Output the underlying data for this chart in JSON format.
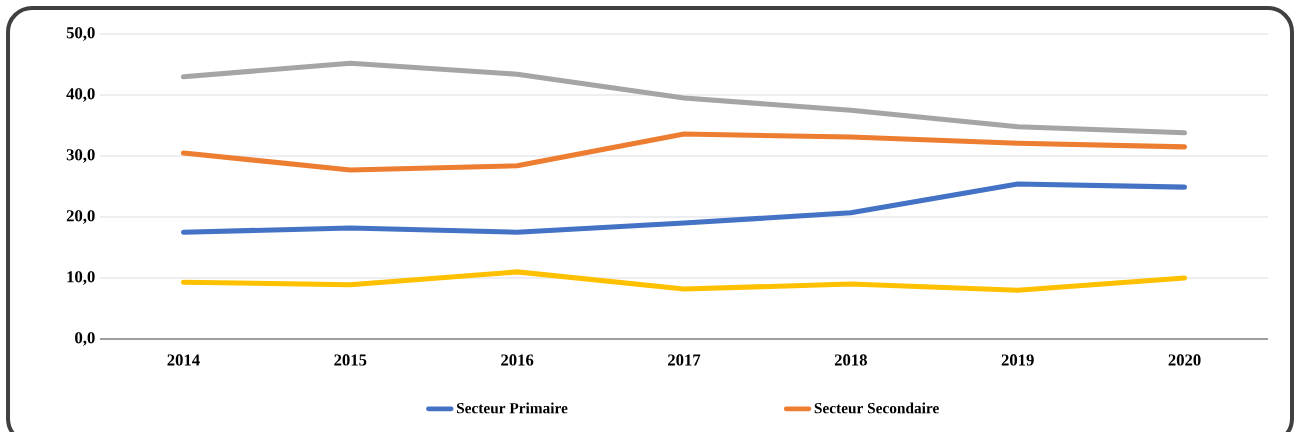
{
  "chart_data": {
    "type": "line",
    "categories": [
      "2014",
      "2015",
      "2016",
      "2017",
      "2018",
      "2019",
      "2020"
    ],
    "series": [
      {
        "name": "Secteur Primaire",
        "color": "#4472c4",
        "values": [
          17.5,
          18.2,
          17.5,
          19.0,
          20.7,
          25.4,
          24.9
        ]
      },
      {
        "name": "Secteur Secondaire",
        "color": "#ed7d31",
        "values": [
          30.5,
          27.7,
          28.4,
          33.6,
          33.1,
          32.1,
          31.5
        ]
      },
      {
        "color": "#a5a5a5",
        "values": [
          43.0,
          45.2,
          43.4,
          39.5,
          37.5,
          34.8,
          33.8
        ]
      },
      {
        "color": "#ffc000",
        "values": [
          9.3,
          8.9,
          11.0,
          8.2,
          9.0,
          8.0,
          10.0
        ]
      }
    ],
    "ylim": [
      0,
      50
    ],
    "yticks": [
      {
        "value": 0,
        "label": "0,0"
      },
      {
        "value": 10,
        "label": "10,0"
      },
      {
        "value": 20,
        "label": "20,0"
      },
      {
        "value": 30,
        "label": "30,0"
      },
      {
        "value": 40,
        "label": "40,0"
      },
      {
        "value": 50,
        "label": "50,0"
      }
    ],
    "grid": "y",
    "legend": "bottom",
    "marker": "none",
    "line_style": "solid"
  }
}
